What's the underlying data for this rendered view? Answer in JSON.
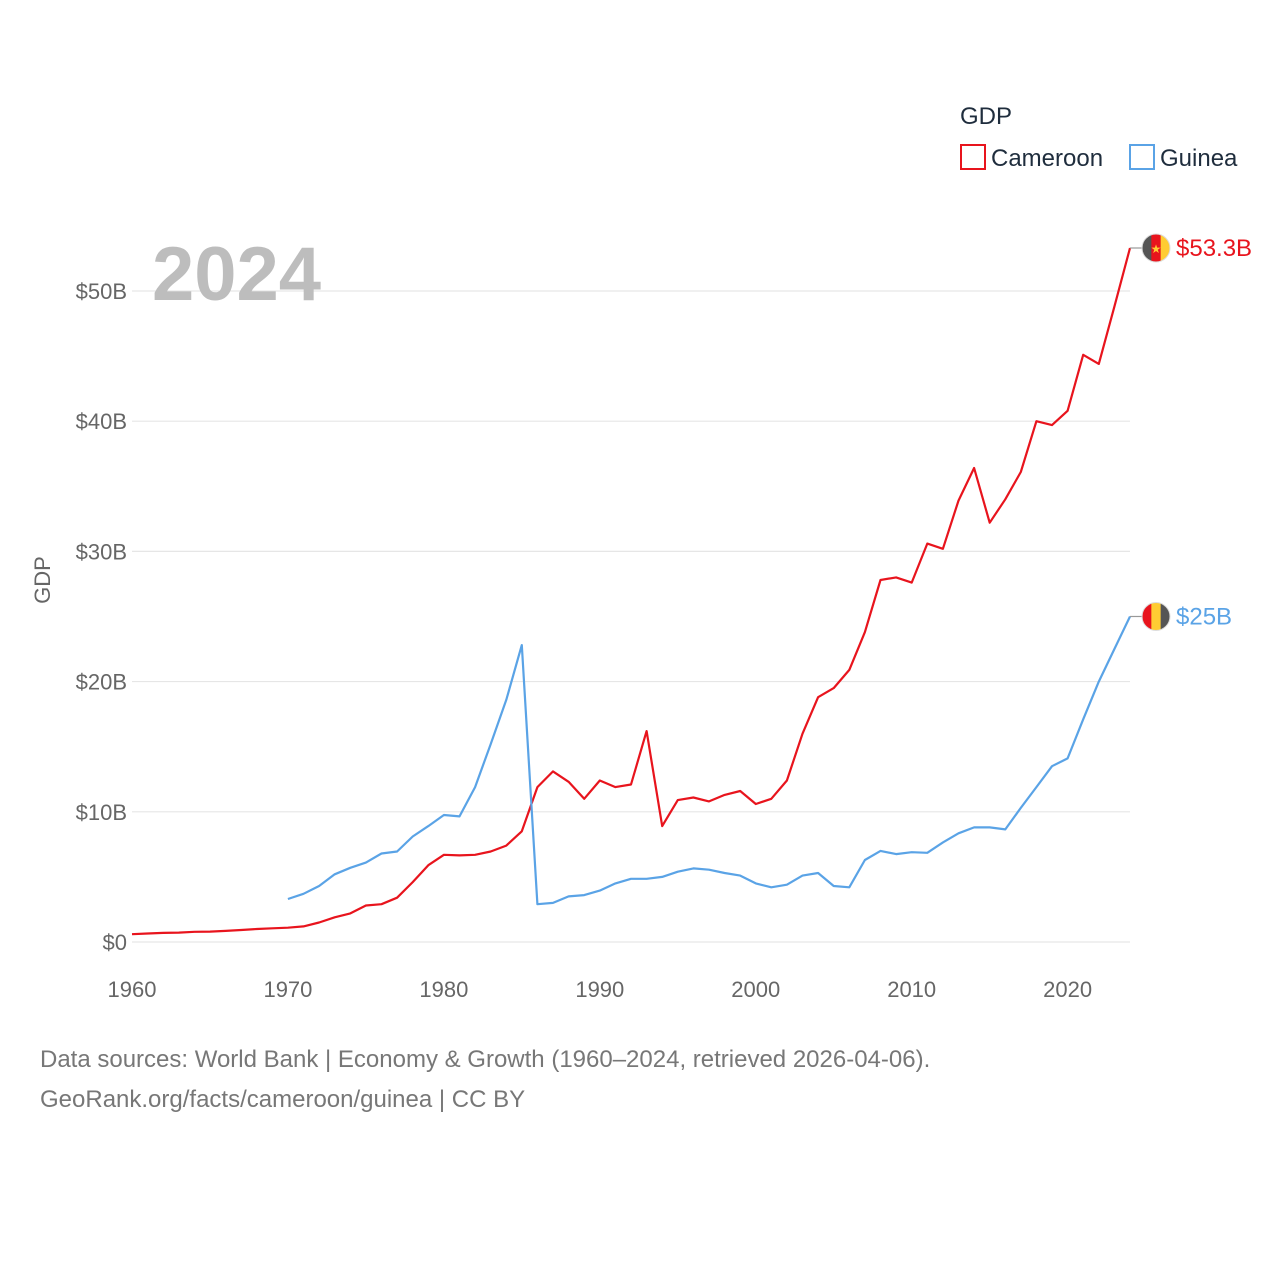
{
  "chart_data": {
    "type": "line",
    "title": "",
    "current_year": "2024",
    "xlabel": "",
    "ylabel": "GDP",
    "xlim": [
      1960,
      2024
    ],
    "ylim": [
      0,
      53.3
    ],
    "x_ticks": [
      1960,
      1970,
      1980,
      1990,
      2000,
      2010,
      2020
    ],
    "x_tick_labels": [
      "1960",
      "1970",
      "1980",
      "1990",
      "2000",
      "2010",
      "2020"
    ],
    "y_ticks": [
      0,
      10,
      20,
      30,
      40,
      50
    ],
    "y_tick_labels": [
      "$0",
      "$10B",
      "$20B",
      "$30B",
      "$40B",
      "$50B"
    ],
    "grid": true,
    "legend": {
      "title": "GDP",
      "position": "top-right"
    },
    "series": [
      {
        "name": "Cameroon",
        "color": "#e8141d",
        "end_label": "$53.3B",
        "flag": "cameroon-flag",
        "x": [
          1960,
          1961,
          1962,
          1963,
          1964,
          1965,
          1966,
          1967,
          1968,
          1969,
          1970,
          1971,
          1972,
          1973,
          1974,
          1975,
          1976,
          1977,
          1978,
          1979,
          1980,
          1981,
          1982,
          1983,
          1984,
          1985,
          1986,
          1987,
          1988,
          1989,
          1990,
          1991,
          1992,
          1993,
          1994,
          1995,
          1996,
          1997,
          1998,
          1999,
          2000,
          2001,
          2002,
          2003,
          2004,
          2005,
          2006,
          2007,
          2008,
          2009,
          2010,
          2011,
          2012,
          2013,
          2014,
          2015,
          2016,
          2017,
          2018,
          2019,
          2020,
          2021,
          2022,
          2023,
          2024
        ],
        "values": [
          0.6,
          0.65,
          0.7,
          0.72,
          0.78,
          0.8,
          0.85,
          0.92,
          1.0,
          1.05,
          1.1,
          1.2,
          1.5,
          1.9,
          2.2,
          2.8,
          2.9,
          3.4,
          4.6,
          5.9,
          6.7,
          6.65,
          6.7,
          6.95,
          7.4,
          8.5,
          11.9,
          13.1,
          12.3,
          11.0,
          12.4,
          11.9,
          12.1,
          16.2,
          8.9,
          10.9,
          11.1,
          10.8,
          11.3,
          11.6,
          10.6,
          11.0,
          12.4,
          16.0,
          18.8,
          19.5,
          20.9,
          23.8,
          27.8,
          28.0,
          27.6,
          30.6,
          30.2,
          33.9,
          36.4,
          32.2,
          34.0,
          36.1,
          40.0,
          39.7,
          40.8,
          45.1,
          44.4,
          48.8,
          53.3
        ]
      },
      {
        "name": "Guinea",
        "color": "#5aa3e6",
        "end_label": "$25B",
        "flag": "guinea-flag",
        "x": [
          1970,
          1971,
          1972,
          1973,
          1974,
          1975,
          1976,
          1977,
          1978,
          1979,
          1980,
          1981,
          1982,
          1983,
          1984,
          1985,
          1986,
          1987,
          1988,
          1989,
          1990,
          1991,
          1992,
          1993,
          1994,
          1995,
          1996,
          1997,
          1998,
          1999,
          2000,
          2001,
          2002,
          2003,
          2004,
          2005,
          2006,
          2007,
          2008,
          2009,
          2010,
          2011,
          2012,
          2013,
          2014,
          2015,
          2016,
          2017,
          2018,
          2019,
          2020,
          2021,
          2022,
          2023,
          2024
        ],
        "values": [
          3.3,
          3.7,
          4.3,
          5.2,
          5.7,
          6.1,
          6.8,
          6.95,
          8.1,
          8.9,
          9.75,
          9.65,
          11.9,
          15.2,
          18.6,
          22.8,
          2.9,
          3.0,
          3.5,
          3.6,
          3.95,
          4.5,
          4.85,
          4.85,
          5.0,
          5.4,
          5.65,
          5.55,
          5.3,
          5.1,
          4.5,
          4.2,
          4.4,
          5.1,
          5.3,
          4.3,
          4.2,
          6.3,
          7.0,
          6.75,
          6.9,
          6.85,
          7.65,
          8.35,
          8.8,
          8.8,
          8.65,
          10.3,
          11.9,
          13.5,
          14.1,
          17.1,
          20.0,
          22.5,
          25.0
        ]
      }
    ]
  },
  "footer": {
    "line1": "Data sources: World Bank | Economy & Growth (1960–2024, retrieved 2026-04-06).",
    "line2": "GeoRank.org/facts/cameroon/guinea | CC BY"
  }
}
